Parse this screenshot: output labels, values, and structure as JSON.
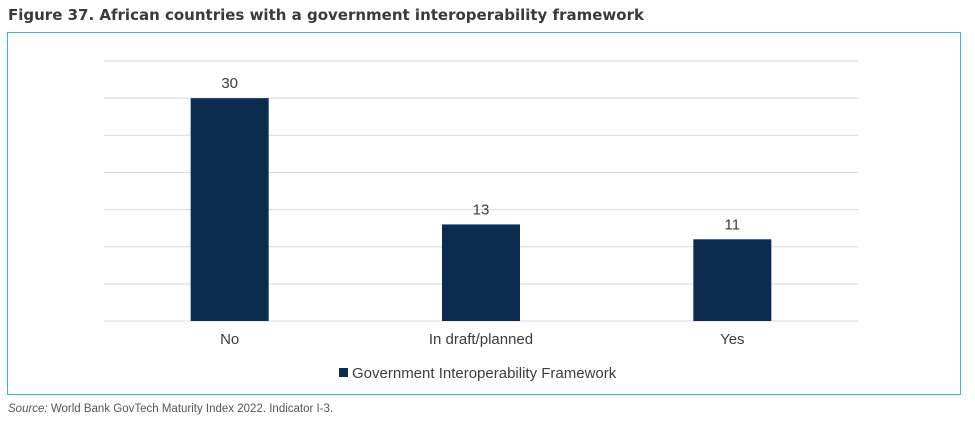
{
  "figure": {
    "title": "Figure 37. African countries with a government interoperability framework",
    "source_label": "Source:",
    "source_text": " World Bank GovTech Maturity Index 2022. Indicator I-3."
  },
  "colors": {
    "bar": "#0b2c4f",
    "frame": "#35b7e8",
    "grid": "#d9d9d9"
  },
  "chart_data": {
    "type": "bar",
    "categories": [
      "No",
      "In draft/planned",
      "Yes"
    ],
    "series": [
      {
        "name": "Government Interoperability Framework",
        "values": [
          30,
          13,
          11
        ]
      }
    ],
    "data_labels": [
      "30",
      "13",
      "11"
    ],
    "ylim": [
      0,
      35
    ],
    "grid": true,
    "legend": "bottom",
    "title": "",
    "xlabel": "",
    "ylabel": ""
  }
}
